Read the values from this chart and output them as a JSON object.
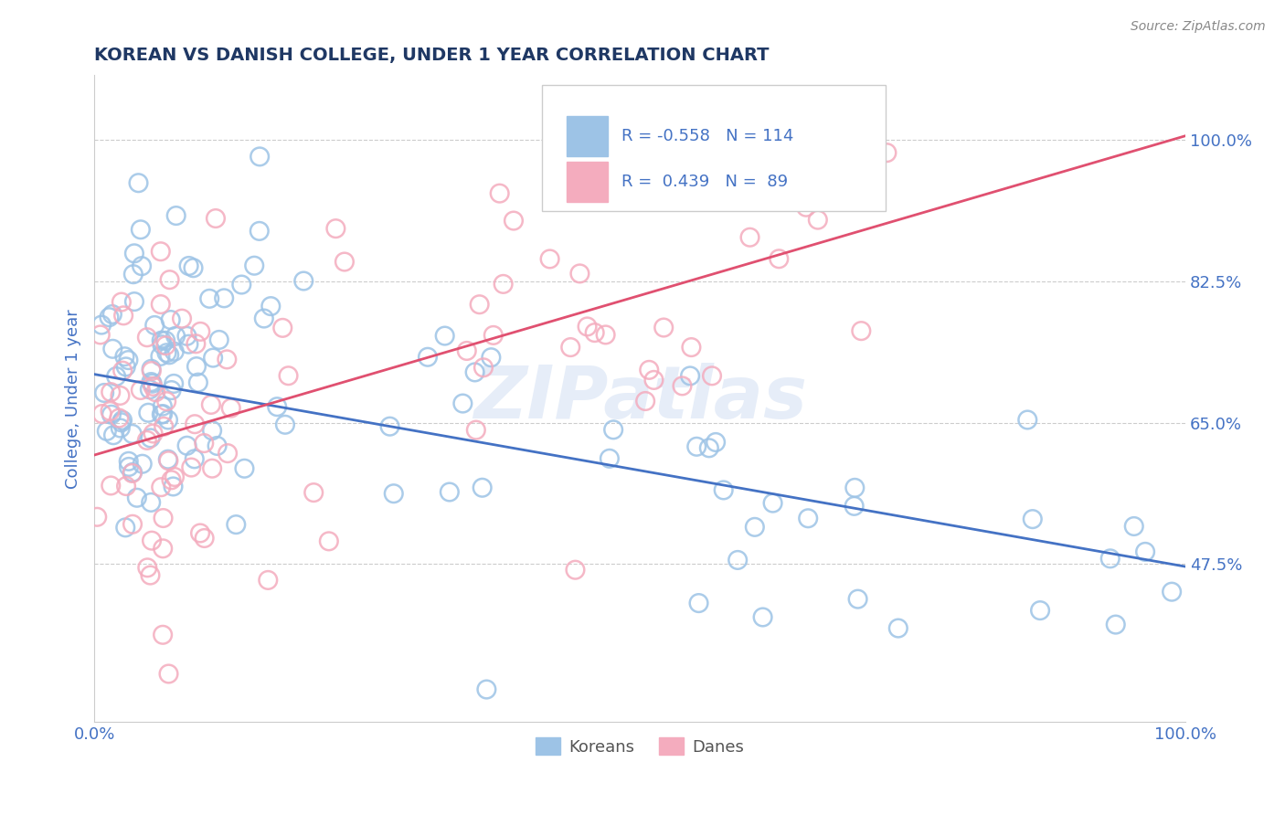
{
  "title": "KOREAN VS DANISH COLLEGE, UNDER 1 YEAR CORRELATION CHART",
  "source_text": "Source: ZipAtlas.com",
  "ylabel": "College, Under 1 year",
  "x_min": 0.0,
  "x_max": 1.0,
  "y_min": 0.28,
  "y_max": 1.08,
  "y_ticks": [
    0.475,
    0.65,
    0.825,
    1.0
  ],
  "y_tick_labels": [
    "47.5%",
    "65.0%",
    "82.5%",
    "100.0%"
  ],
  "x_ticks": [
    0.0,
    1.0
  ],
  "x_tick_labels": [
    "0.0%",
    "100.0%"
  ],
  "title_color": "#1f3864",
  "tick_color": "#4472c4",
  "legend_r_korean": "-0.558",
  "legend_n_korean": "114",
  "legend_r_danish": "0.439",
  "legend_n_danish": "89",
  "korean_color": "#9dc3e6",
  "danish_color": "#f4acbe",
  "korean_line_color": "#4472c4",
  "danish_line_color": "#e05070",
  "watermark": "ZIPatlas",
  "background_color": "#ffffff",
  "korean_line_x0": 0.0,
  "korean_line_y0": 0.71,
  "korean_line_x1": 1.0,
  "korean_line_y1": 0.472,
  "danish_line_x0": 0.0,
  "danish_line_y0": 0.61,
  "danish_line_x1": 1.0,
  "danish_line_y1": 1.005
}
